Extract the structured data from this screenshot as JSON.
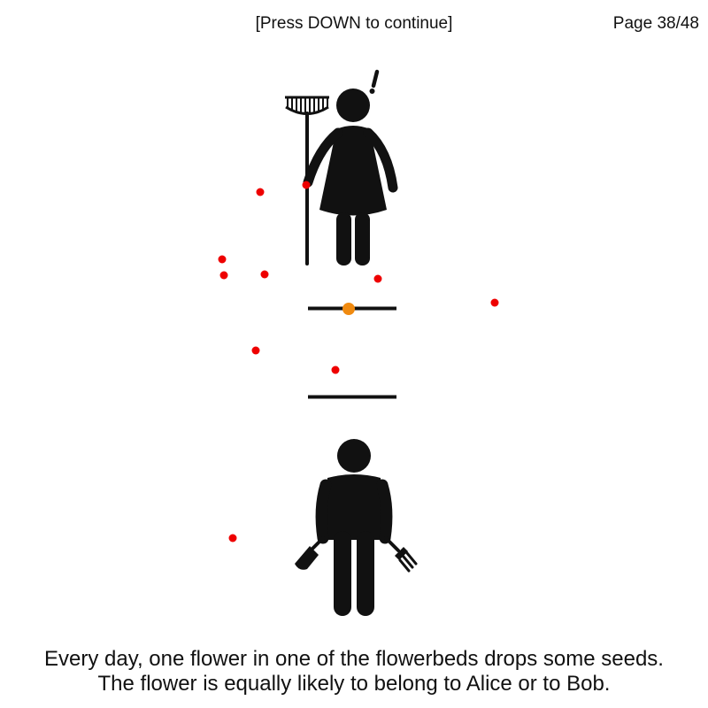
{
  "header": {
    "prompt": "[Press DOWN to continue]",
    "page": "Page 38/48"
  },
  "caption": {
    "line1": "Every day, one flower in one of the flowerbeds drops some seeds.",
    "line2": "The flower is equally likely to belong to Alice or to Bob."
  },
  "colors": {
    "figure": "#111111",
    "seed": "#ee0000",
    "highlight_seed": "#f08a10",
    "background": "#ffffff"
  },
  "icons": {
    "top_figure": "woman-with-rake-icon",
    "alert": "exclamation-mark-icon",
    "bottom_figure": "man-with-trowel-and-fork-icon",
    "flowerbed": "flowerbed-line"
  }
}
